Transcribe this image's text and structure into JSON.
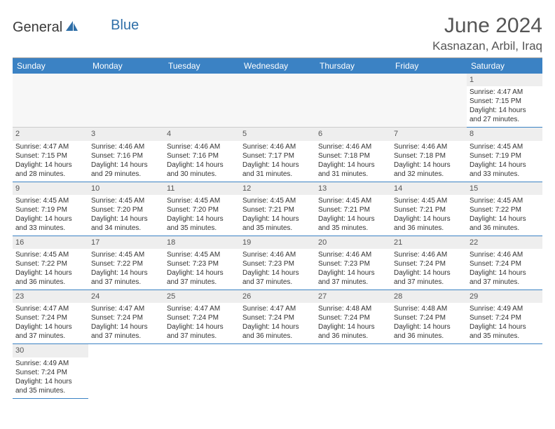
{
  "logo": {
    "text_general": "General",
    "text_blue": "Blue"
  },
  "title": "June 2024",
  "location": "Kasnazan, Arbil, Iraq",
  "colors": {
    "header_bg": "#3b82c4",
    "header_text": "#ffffff",
    "cell_border": "#3b82c4",
    "daynum_bg": "#eeeeee",
    "text": "#333333",
    "title_color": "#555555"
  },
  "day_headers": [
    "Sunday",
    "Monday",
    "Tuesday",
    "Wednesday",
    "Thursday",
    "Friday",
    "Saturday"
  ],
  "blank_cells_before": 6,
  "days": [
    {
      "n": 1,
      "sr": "4:47 AM",
      "ss": "7:15 PM",
      "dl": "14 hours and 27 minutes."
    },
    {
      "n": 2,
      "sr": "4:47 AM",
      "ss": "7:15 PM",
      "dl": "14 hours and 28 minutes."
    },
    {
      "n": 3,
      "sr": "4:46 AM",
      "ss": "7:16 PM",
      "dl": "14 hours and 29 minutes."
    },
    {
      "n": 4,
      "sr": "4:46 AM",
      "ss": "7:16 PM",
      "dl": "14 hours and 30 minutes."
    },
    {
      "n": 5,
      "sr": "4:46 AM",
      "ss": "7:17 PM",
      "dl": "14 hours and 31 minutes."
    },
    {
      "n": 6,
      "sr": "4:46 AM",
      "ss": "7:18 PM",
      "dl": "14 hours and 31 minutes."
    },
    {
      "n": 7,
      "sr": "4:46 AM",
      "ss": "7:18 PM",
      "dl": "14 hours and 32 minutes."
    },
    {
      "n": 8,
      "sr": "4:45 AM",
      "ss": "7:19 PM",
      "dl": "14 hours and 33 minutes."
    },
    {
      "n": 9,
      "sr": "4:45 AM",
      "ss": "7:19 PM",
      "dl": "14 hours and 33 minutes."
    },
    {
      "n": 10,
      "sr": "4:45 AM",
      "ss": "7:20 PM",
      "dl": "14 hours and 34 minutes."
    },
    {
      "n": 11,
      "sr": "4:45 AM",
      "ss": "7:20 PM",
      "dl": "14 hours and 35 minutes."
    },
    {
      "n": 12,
      "sr": "4:45 AM",
      "ss": "7:21 PM",
      "dl": "14 hours and 35 minutes."
    },
    {
      "n": 13,
      "sr": "4:45 AM",
      "ss": "7:21 PM",
      "dl": "14 hours and 35 minutes."
    },
    {
      "n": 14,
      "sr": "4:45 AM",
      "ss": "7:21 PM",
      "dl": "14 hours and 36 minutes."
    },
    {
      "n": 15,
      "sr": "4:45 AM",
      "ss": "7:22 PM",
      "dl": "14 hours and 36 minutes."
    },
    {
      "n": 16,
      "sr": "4:45 AM",
      "ss": "7:22 PM",
      "dl": "14 hours and 36 minutes."
    },
    {
      "n": 17,
      "sr": "4:45 AM",
      "ss": "7:22 PM",
      "dl": "14 hours and 37 minutes."
    },
    {
      "n": 18,
      "sr": "4:45 AM",
      "ss": "7:23 PM",
      "dl": "14 hours and 37 minutes."
    },
    {
      "n": 19,
      "sr": "4:46 AM",
      "ss": "7:23 PM",
      "dl": "14 hours and 37 minutes."
    },
    {
      "n": 20,
      "sr": "4:46 AM",
      "ss": "7:23 PM",
      "dl": "14 hours and 37 minutes."
    },
    {
      "n": 21,
      "sr": "4:46 AM",
      "ss": "7:24 PM",
      "dl": "14 hours and 37 minutes."
    },
    {
      "n": 22,
      "sr": "4:46 AM",
      "ss": "7:24 PM",
      "dl": "14 hours and 37 minutes."
    },
    {
      "n": 23,
      "sr": "4:47 AM",
      "ss": "7:24 PM",
      "dl": "14 hours and 37 minutes."
    },
    {
      "n": 24,
      "sr": "4:47 AM",
      "ss": "7:24 PM",
      "dl": "14 hours and 37 minutes."
    },
    {
      "n": 25,
      "sr": "4:47 AM",
      "ss": "7:24 PM",
      "dl": "14 hours and 37 minutes."
    },
    {
      "n": 26,
      "sr": "4:47 AM",
      "ss": "7:24 PM",
      "dl": "14 hours and 36 minutes."
    },
    {
      "n": 27,
      "sr": "4:48 AM",
      "ss": "7:24 PM",
      "dl": "14 hours and 36 minutes."
    },
    {
      "n": 28,
      "sr": "4:48 AM",
      "ss": "7:24 PM",
      "dl": "14 hours and 36 minutes."
    },
    {
      "n": 29,
      "sr": "4:49 AM",
      "ss": "7:24 PM",
      "dl": "14 hours and 35 minutes."
    },
    {
      "n": 30,
      "sr": "4:49 AM",
      "ss": "7:24 PM",
      "dl": "14 hours and 35 minutes."
    }
  ],
  "labels": {
    "sunrise": "Sunrise:",
    "sunset": "Sunset:",
    "daylight": "Daylight:"
  }
}
